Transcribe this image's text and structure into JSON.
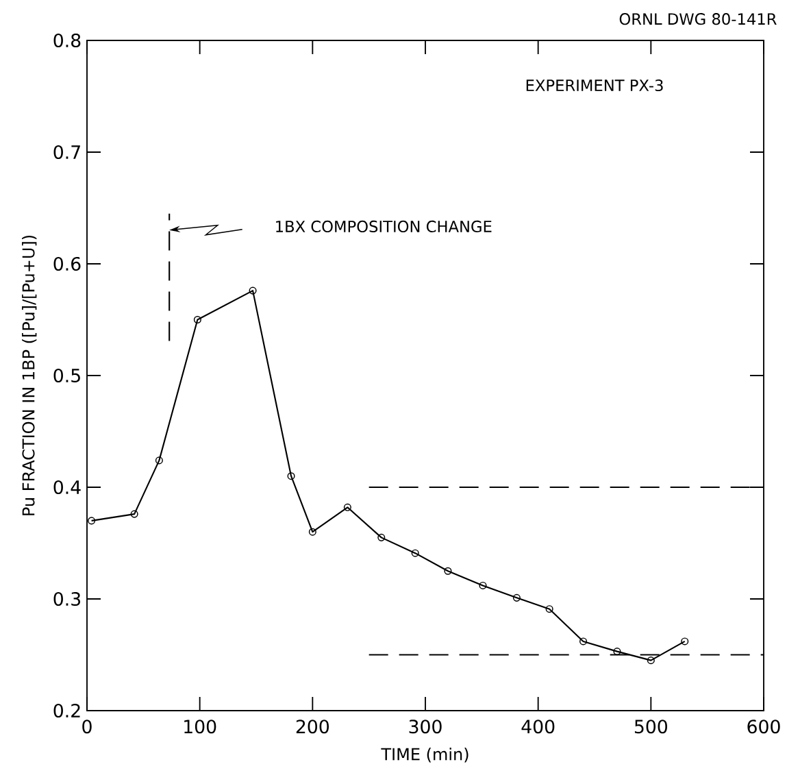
{
  "chart_data": {
    "type": "line",
    "xlabel": "TIME (min)",
    "ylabel": "Pu FRACTION IN 1BP ([Pu]/[Pu+U])",
    "xlim": [
      0,
      600
    ],
    "ylim": [
      0.2,
      0.8
    ],
    "xticks": [
      0,
      100,
      200,
      300,
      400,
      500,
      600
    ],
    "yticks": [
      0.2,
      0.3,
      0.4,
      0.5,
      0.6,
      0.7,
      0.8
    ],
    "grid": false,
    "series": [
      {
        "color": "#000000",
        "marker": "circle",
        "line_style": "solid",
        "x": [
          4,
          42,
          64,
          98,
          147,
          181,
          200,
          231,
          261,
          291,
          320,
          351,
          381,
          410,
          440,
          470,
          500,
          530
        ],
        "values": [
          0.37,
          0.376,
          0.424,
          0.55,
          0.576,
          0.41,
          0.36,
          0.382,
          0.355,
          0.341,
          0.325,
          0.312,
          0.301,
          0.291,
          0.262,
          0.253,
          0.245,
          0.262
        ]
      },
      {
        "color": "#000000",
        "marker": "none",
        "line_style": "dashed",
        "x": [
          250,
          600
        ],
        "values": [
          0.4,
          0.4
        ]
      },
      {
        "color": "#000000",
        "marker": "none",
        "line_style": "dashed",
        "x": [
          250,
          600
        ],
        "values": [
          0.25,
          0.25
        ]
      },
      {
        "color": "#000000",
        "marker": "none",
        "line_style": "dashed",
        "x": [
          73,
          73
        ],
        "values": [
          0.531,
          0.645
        ]
      }
    ],
    "annotations": [
      "EXPERIMENT PX-3",
      "ORNL DWG 80-141R",
      "1BX COMPOSITION CHANGE"
    ]
  }
}
